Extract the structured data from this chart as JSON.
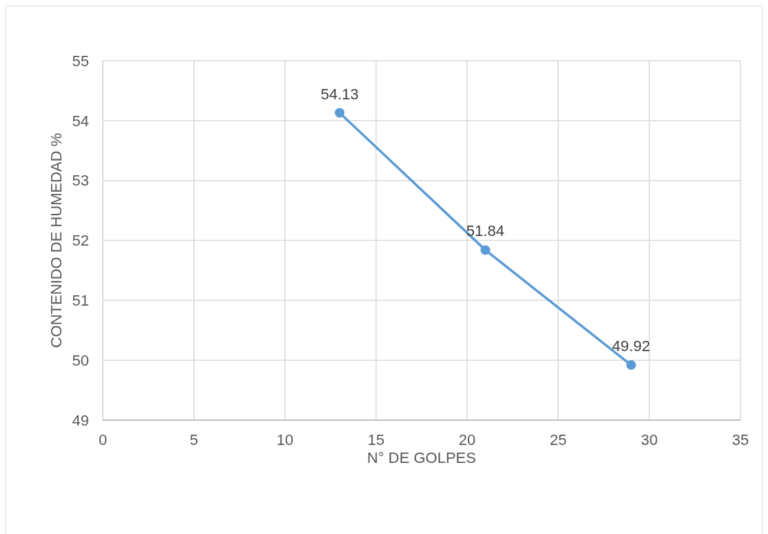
{
  "chart_data": {
    "type": "line",
    "xlabel": "N° DE GOLPES",
    "ylabel": "CONTENIDO DE HUMEDAD %",
    "x": [
      13,
      21,
      29
    ],
    "series": [
      {
        "color": "#5b9bd5",
        "values": [
          54.13,
          51.84,
          49.92
        ]
      }
    ],
    "xlim": [
      0,
      35
    ],
    "xticks": [
      0,
      5,
      10,
      15,
      20,
      25,
      30,
      35
    ],
    "ylim": [
      49,
      55
    ],
    "yticks": [
      49,
      50,
      51,
      52,
      53,
      54,
      55
    ],
    "grid": true,
    "marker": "circle",
    "line_style": "solid",
    "data_labels": true
  }
}
